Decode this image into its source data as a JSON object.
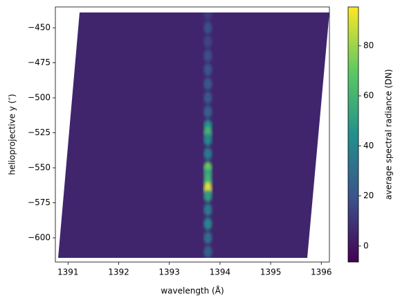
{
  "chart_data": {
    "type": "heatmap",
    "xlabel": "wavelength (Å)",
    "ylabel": "helioprojective y (″)",
    "colorbar_label": "average spectral radiance (DN)",
    "xlim": [
      1390.75,
      1396.16
    ],
    "ylim": [
      -617.3,
      -435.1
    ],
    "xticks": [
      1391,
      1392,
      1393,
      1394,
      1395,
      1396
    ],
    "yticks": [
      {
        "value": -450,
        "label": "−450"
      },
      {
        "value": -475,
        "label": "−475"
      },
      {
        "value": -500,
        "label": "−500"
      },
      {
        "value": -525,
        "label": "−525"
      },
      {
        "value": -550,
        "label": "−550"
      },
      {
        "value": -575,
        "label": "−575"
      },
      {
        "value": -600,
        "label": "−600"
      }
    ],
    "clim": [
      -6.4,
      95.5
    ],
    "cticks": [
      0,
      20,
      40,
      60,
      80
    ],
    "background": 5,
    "line_center": 1393.76,
    "y": [
      -440,
      -450,
      -460,
      -470,
      -480,
      -490,
      -500,
      -510,
      -520,
      -525,
      -530,
      -540,
      -550,
      -555,
      -560,
      -565,
      -570,
      -580,
      -590,
      -600,
      -610
    ],
    "values": [
      12,
      18,
      15,
      18,
      20,
      22,
      22,
      25,
      45,
      60,
      40,
      35,
      70,
      55,
      60,
      90,
      50,
      35,
      40,
      30,
      25
    ]
  }
}
